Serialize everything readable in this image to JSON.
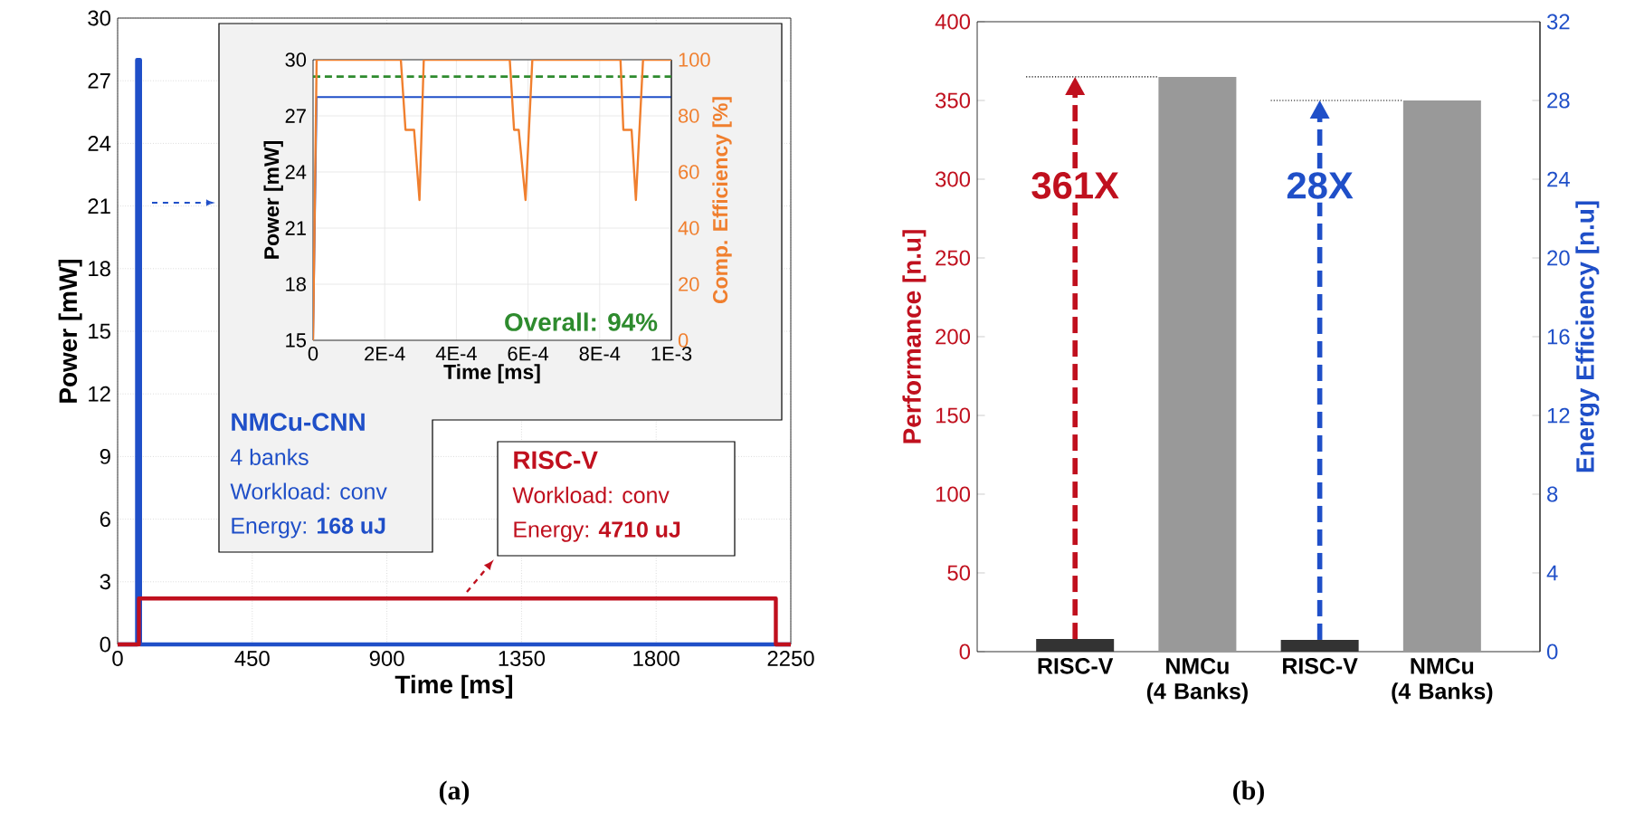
{
  "chart_data": [
    {
      "type": "line",
      "xlabel": "Time [ms]",
      "ylabel": "Power [mW]",
      "xlim": [
        0,
        2250
      ],
      "xticks": [
        0,
        450,
        900,
        1350,
        1800,
        2250
      ],
      "ylim": [
        0,
        30
      ],
      "yticks": [
        0,
        3,
        6,
        9,
        12,
        15,
        18,
        21,
        24,
        27,
        30
      ],
      "grid": true,
      "series": [
        {
          "name": "NMCu-CNN",
          "color": "#1f4fc8",
          "x": [
            0,
            65,
            65,
            75,
            75,
            2250
          ],
          "values": [
            0,
            0,
            28,
            28,
            0,
            0
          ]
        },
        {
          "name": "RISC-V",
          "color": "#c0101e",
          "x": [
            0,
            71,
            71,
            2200,
            2200,
            2250
          ],
          "values": [
            0,
            0,
            2.2,
            2.2,
            0,
            0
          ]
        }
      ],
      "annotations": [
        "4 banks",
        "Workload: conv",
        "Energy: **168 uJ**",
        "Workload: conv",
        "Energy: **4710 uJ**",
        "(a)"
      ]
    },
    {
      "type": "line",
      "xlabel": "Time [ms]",
      "ylabel": "Power [mW]",
      "y2label": "Comp. Efficiency [%]",
      "xlim": [
        0,
        0.001
      ],
      "xticks": [
        0,
        {
          "value": 0.0002,
          "label": "2E-4"
        },
        {
          "value": 0.0004,
          "label": "4E-4"
        },
        {
          "value": 0.0006,
          "label": "6E-4"
        },
        {
          "value": 0.0008,
          "label": "8E-4"
        },
        {
          "value": 0.001,
          "label": "1E-3"
        }
      ],
      "ylim": [
        15,
        30
      ],
      "yticks": [
        15,
        18,
        21,
        24,
        27,
        30
      ],
      "y2lim": [
        0,
        100
      ],
      "y2ticks": [
        0,
        20,
        40,
        60,
        80,
        100
      ],
      "grid": true,
      "series": [
        {
          "color": "#1f4fc8",
          "x": [
            0,
            1e-05,
            0.001
          ],
          "values": [
            15,
            28,
            28
          ]
        },
        {
          "color": "#f07f2e",
          "axis": "y2",
          "x": [
            0,
            1e-05,
            0.000245,
            0.000258,
            0.000282,
            0.000297,
            0.000309,
            0.000549,
            0.000561,
            0.000574,
            0.000593,
            0.000612,
            0.000858,
            0.000866,
            0.000889,
            0.000901,
            0.000921,
            0.001
          ],
          "values": [
            0,
            100,
            100,
            75,
            75,
            50,
            100,
            100,
            75,
            75,
            50,
            100,
            100,
            75,
            75,
            50,
            100,
            100
          ]
        }
      ],
      "ref_lines": [
        {
          "axis": "y2",
          "value": 94,
          "color": "#2e8b2e",
          "line_style": "dashed"
        }
      ],
      "annotations": [
        "Overall: 94%"
      ]
    },
    {
      "type": "bar",
      "categories": [
        "RISC-V",
        "NMCu (4 Banks)",
        "RISC-V",
        "NMCu (4 Banks)"
      ],
      "ylabel": "Performance [n.u]",
      "y2label": "Energy Efficiency [n.u]",
      "ylim": [
        0,
        400
      ],
      "yticks": [
        0,
        50,
        100,
        150,
        200,
        250,
        300,
        350,
        400
      ],
      "y2lim": [
        0,
        32
      ],
      "y2ticks": [
        0,
        4,
        8,
        12,
        16,
        20,
        24,
        28,
        32
      ],
      "series": [
        {
          "colors": [
            "#333333",
            "#999999",
            null,
            null
          ],
          "values": [
            8,
            365,
            null,
            null
          ]
        },
        {
          "colors": [
            null,
            null,
            "#333333",
            "#999999"
          ],
          "axis": "y2",
          "values": [
            null,
            null,
            0.6,
            28
          ]
        }
      ],
      "annotations": [
        "361X",
        "28X",
        "(b)"
      ]
    }
  ]
}
